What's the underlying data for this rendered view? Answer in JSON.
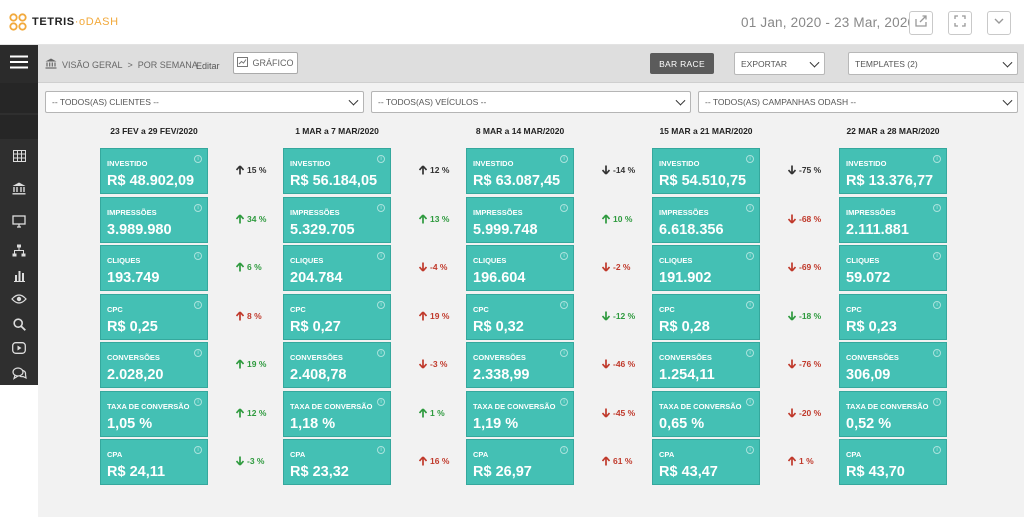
{
  "app": {
    "logo_text": "TETRIS",
    "logo_accent": "oDASH"
  },
  "header": {
    "date_range": "01 Jan, 2020 - 23 Mar, 2020"
  },
  "toolbar": {
    "breadcrumb": [
      "VISÃO GERAL",
      "POR SEMANA"
    ],
    "breadcrumb_sep": ">",
    "edit_label": "Editar",
    "chart_label": "GRÁFICO",
    "bar_race_label": "BAR RACE",
    "export_label": "EXPORTAR",
    "templates_label": "TEMPLATES (2)"
  },
  "filters": {
    "clients": "-- TODOS(AS) CLIENTES --",
    "vehicles": "-- TODOS(AS) VEÍCULOS --",
    "campaigns": "-- TODOS(AS) CAMPANHAS ODASH --"
  },
  "weeks": [
    {
      "title": "23 FEV a 29 FEV/2020",
      "metrics": [
        {
          "label": "INVESTIDO",
          "value": "R$ 48.902,09",
          "delta": "15 %",
          "dir": "up",
          "color": "neutral"
        },
        {
          "label": "IMPRESSÕES",
          "value": "3.989.980",
          "delta": "34 %",
          "dir": "up",
          "color": "up"
        },
        {
          "label": "CLIQUES",
          "value": "193.749",
          "delta": "6 %",
          "dir": "up",
          "color": "up"
        },
        {
          "label": "CPC",
          "value": "R$ 0,25",
          "delta": "8 %",
          "dir": "up",
          "color": "down"
        },
        {
          "label": "CONVERSÕES",
          "value": "2.028,20",
          "delta": "19 %",
          "dir": "up",
          "color": "up"
        },
        {
          "label": "TAXA DE CONVERSÃO",
          "value": "1,05 %",
          "delta": "12 %",
          "dir": "up",
          "color": "up"
        },
        {
          "label": "CPA",
          "value": "R$ 24,11",
          "delta": "-3 %",
          "dir": "down",
          "color": "up"
        }
      ]
    },
    {
      "title": "1 MAR a 7 MAR/2020",
      "metrics": [
        {
          "label": "INVESTIDO",
          "value": "R$ 56.184,05",
          "delta": "12 %",
          "dir": "up",
          "color": "neutral"
        },
        {
          "label": "IMPRESSÕES",
          "value": "5.329.705",
          "delta": "13 %",
          "dir": "up",
          "color": "up"
        },
        {
          "label": "CLIQUES",
          "value": "204.784",
          "delta": "-4 %",
          "dir": "down",
          "color": "down"
        },
        {
          "label": "CPC",
          "value": "R$ 0,27",
          "delta": "19 %",
          "dir": "up",
          "color": "down"
        },
        {
          "label": "CONVERSÕES",
          "value": "2.408,78",
          "delta": "-3 %",
          "dir": "down",
          "color": "down"
        },
        {
          "label": "TAXA DE CONVERSÃO",
          "value": "1,18 %",
          "delta": "1 %",
          "dir": "up",
          "color": "up"
        },
        {
          "label": "CPA",
          "value": "R$ 23,32",
          "delta": "16 %",
          "dir": "up",
          "color": "down"
        }
      ]
    },
    {
      "title": "8 MAR a 14 MAR/2020",
      "metrics": [
        {
          "label": "INVESTIDO",
          "value": "R$ 63.087,45",
          "delta": "-14 %",
          "dir": "down",
          "color": "neutral"
        },
        {
          "label": "IMPRESSÕES",
          "value": "5.999.748",
          "delta": "10 %",
          "dir": "up",
          "color": "up"
        },
        {
          "label": "CLIQUES",
          "value": "196.604",
          "delta": "-2 %",
          "dir": "down",
          "color": "down"
        },
        {
          "label": "CPC",
          "value": "R$ 0,32",
          "delta": "-12 %",
          "dir": "down",
          "color": "up"
        },
        {
          "label": "CONVERSÕES",
          "value": "2.338,99",
          "delta": "-46 %",
          "dir": "down",
          "color": "down"
        },
        {
          "label": "TAXA DE CONVERSÃO",
          "value": "1,19 %",
          "delta": "-45 %",
          "dir": "down",
          "color": "down"
        },
        {
          "label": "CPA",
          "value": "R$ 26,97",
          "delta": "61 %",
          "dir": "up",
          "color": "down"
        }
      ]
    },
    {
      "title": "15 MAR a 21 MAR/2020",
      "metrics": [
        {
          "label": "INVESTIDO",
          "value": "R$ 54.510,75",
          "delta": "-75 %",
          "dir": "down",
          "color": "neutral"
        },
        {
          "label": "IMPRESSÕES",
          "value": "6.618.356",
          "delta": "-68 %",
          "dir": "down",
          "color": "down"
        },
        {
          "label": "CLIQUES",
          "value": "191.902",
          "delta": "-69 %",
          "dir": "down",
          "color": "down"
        },
        {
          "label": "CPC",
          "value": "R$ 0,28",
          "delta": "-18 %",
          "dir": "down",
          "color": "up"
        },
        {
          "label": "CONVERSÕES",
          "value": "1.254,11",
          "delta": "-76 %",
          "dir": "down",
          "color": "down"
        },
        {
          "label": "TAXA DE CONVERSÃO",
          "value": "0,65 %",
          "delta": "-20 %",
          "dir": "down",
          "color": "down"
        },
        {
          "label": "CPA",
          "value": "R$ 43,47",
          "delta": "1 %",
          "dir": "up",
          "color": "down"
        }
      ]
    },
    {
      "title": "22 MAR a 28 MAR/2020",
      "metrics": [
        {
          "label": "INVESTIDO",
          "value": "R$ 13.376,77"
        },
        {
          "label": "IMPRESSÕES",
          "value": "2.111.881"
        },
        {
          "label": "CLIQUES",
          "value": "59.072"
        },
        {
          "label": "CPC",
          "value": "R$ 0,23"
        },
        {
          "label": "CONVERSÕES",
          "value": "306,09"
        },
        {
          "label": "TAXA DE CONVERSÃO",
          "value": "0,52 %"
        },
        {
          "label": "CPA",
          "value": "R$ 43,70"
        }
      ]
    }
  ],
  "colors": {
    "card": "#44c0b4",
    "up": "#2e9a3e",
    "down": "#c0392b",
    "neutral": "#333333"
  }
}
